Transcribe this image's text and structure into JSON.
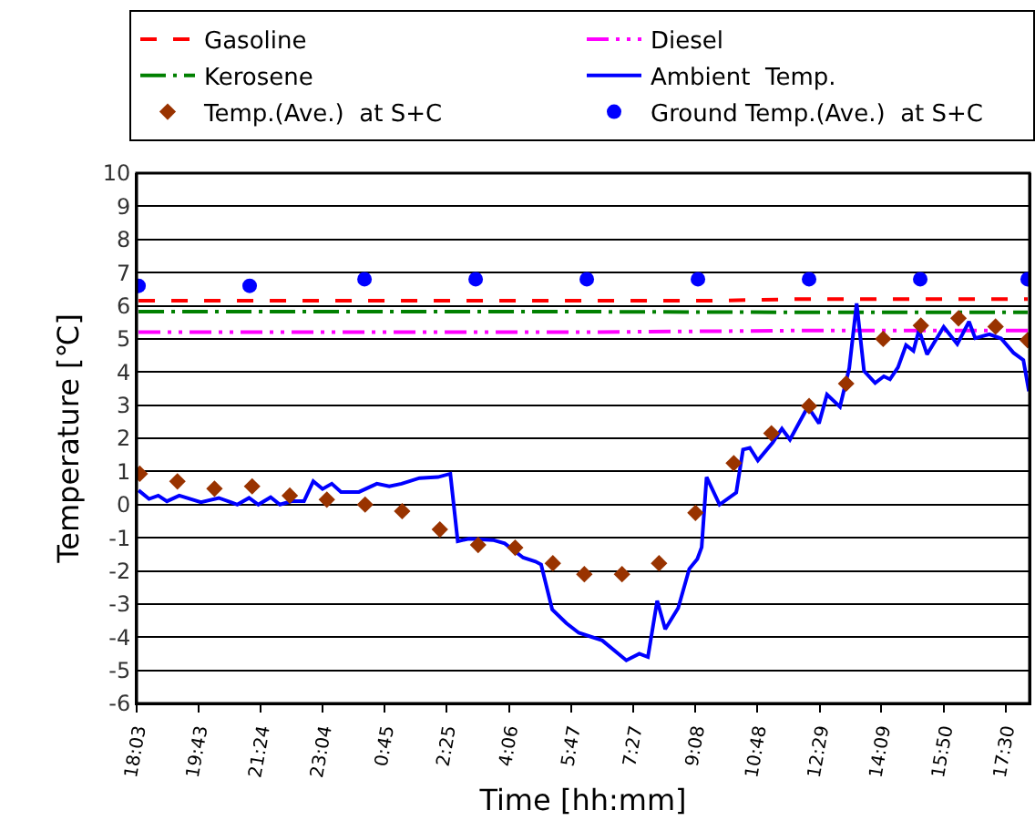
{
  "chart_data": {
    "type": "line",
    "xlabel": "Time [hh:mm]",
    "ylabel": "Temperature [℃]",
    "xlim": [
      "--01-01T18:03",
      "--01-02T18:09"
    ],
    "ylim": [
      -6,
      10
    ],
    "xticks": [
      {
        "value": "--01-01T18:03",
        "label": "18:03"
      },
      {
        "value": "--01-01T19:43",
        "label": "19:43"
      },
      {
        "value": "--01-01T21:24",
        "label": "21:24"
      },
      {
        "value": "--01-01T23:04",
        "label": "23:04"
      },
      {
        "value": "--01-02T00:45",
        "label": "0:45"
      },
      {
        "value": "--01-02T02:25",
        "label": "2:25"
      },
      {
        "value": "--01-02T04:06",
        "label": "4:06"
      },
      {
        "value": "--01-02T05:47",
        "label": "5:47"
      },
      {
        "value": "--01-02T07:27",
        "label": "7:27"
      },
      {
        "value": "--01-02T09:08",
        "label": "9:08"
      },
      {
        "value": "--01-02T10:48",
        "label": "10:48"
      },
      {
        "value": "--01-02T12:29",
        "label": "12:29"
      },
      {
        "value": "--01-02T14:09",
        "label": "14:09"
      },
      {
        "value": "--01-02T15:50",
        "label": "15:50"
      },
      {
        "value": "--01-02T17:30",
        "label": "17:30"
      }
    ],
    "yticks": [
      -6,
      -5,
      -4,
      -3,
      -2,
      -1,
      0,
      1,
      2,
      3,
      4,
      5,
      6,
      7,
      8,
      9,
      10
    ],
    "grid": "y",
    "legend": "top",
    "series": [
      {
        "name": "Gasoline",
        "color": "#ff0000",
        "line_style": "dashed",
        "marker": "none",
        "x": [
          "--01-01T18:06",
          "--01-02T00:00",
          "--01-02T06:00",
          "--01-02T09:30",
          "--01-02T12:00",
          "--01-02T18:06"
        ],
        "values": [
          6.15,
          6.15,
          6.15,
          6.15,
          6.2,
          6.2
        ]
      },
      {
        "name": "Diesel",
        "color": "#ff00ff",
        "line_style": "dashdotdot",
        "marker": "none",
        "x": [
          "--01-01T18:06",
          "--01-02T00:00",
          "--01-02T06:00",
          "--01-02T12:00",
          "--01-02T18:06"
        ],
        "values": [
          5.2,
          5.2,
          5.2,
          5.25,
          5.25
        ]
      },
      {
        "name": "Kerosene",
        "color": "#008000",
        "line_style": "dashdot",
        "marker": "none",
        "x": [
          "--01-01T18:06",
          "--01-02T00:00",
          "--01-02T06:00",
          "--01-02T12:00",
          "--01-02T18:06"
        ],
        "values": [
          5.82,
          5.82,
          5.82,
          5.8,
          5.8
        ]
      },
      {
        "name": "Ambient  Temp.",
        "color": "#0000ff",
        "line_style": "solid",
        "marker": "none",
        "x": [
          "--01-01T18:06",
          "--01-01T18:23",
          "--01-01T18:38",
          "--01-01T18:52",
          "--01-01T19:12",
          "--01-01T19:47",
          "--01-01T20:16",
          "--01-01T20:46",
          "--01-01T21:05",
          "--01-01T21:20",
          "--01-01T21:40",
          "--01-01T21:55",
          "--01-01T22:14",
          "--01-01T22:34",
          "--01-01T22:49",
          "--01-01T23:04",
          "--01-01T23:19",
          "--01-01T23:34",
          "--01-02T00:03",
          "--01-02T00:32",
          "--01-02T00:52",
          "--01-02T01:12",
          "--01-02T01:41",
          "--01-02T02:11",
          "--01-02T02:31",
          "--01-02T02:43",
          "--01-02T03:01",
          "--01-02T03:40",
          "--01-02T03:59",
          "--01-02T04:29",
          "--01-02T04:49",
          "--01-02T04:58",
          "--01-02T05:16",
          "--01-02T05:39",
          "--01-02T05:59",
          "--01-02T06:37",
          "--01-02T07:16",
          "--01-02T07:37",
          "--01-02T07:51",
          "--01-02T08:06",
          "--01-02T08:19",
          "--01-02T08:40",
          "--01-02T08:58",
          "--01-02T09:11",
          "--01-02T09:18",
          "--01-02T09:26",
          "--01-02T09:47",
          "--01-02T10:14",
          "--01-02T10:25",
          "--01-02T10:36",
          "--01-02T10:49",
          "--01-02T11:13",
          "--01-02T11:28",
          "--01-02T11:41",
          "--01-02T11:53",
          "--01-02T12:10",
          "--01-02T12:28",
          "--01-02T12:41",
          "--01-02T13:02",
          "--01-02T13:17",
          "--01-02T13:29",
          "--01-02T13:41",
          "--01-02T13:59",
          "--01-02T14:13",
          "--01-02T14:23",
          "--01-02T14:36",
          "--01-02T14:49",
          "--01-02T15:01",
          "--01-02T15:10",
          "--01-02T15:23",
          "--01-02T15:50",
          "--01-02T16:12",
          "--01-02T16:31",
          "--01-02T16:41",
          "--01-02T17:04",
          "--01-02T17:23",
          "--01-02T17:43",
          "--01-02T17:59",
          "--01-02T18:08"
        ],
        "values": [
          0.43,
          0.17,
          0.27,
          0.1,
          0.27,
          0.07,
          0.2,
          0.0,
          0.2,
          0.0,
          0.22,
          0.0,
          0.1,
          0.1,
          0.7,
          0.47,
          0.63,
          0.38,
          0.38,
          0.63,
          0.55,
          0.63,
          0.8,
          0.83,
          0.93,
          -1.11,
          -1.03,
          -1.07,
          -1.17,
          -1.6,
          -1.72,
          -1.81,
          -3.17,
          -3.58,
          -3.87,
          -4.1,
          -4.7,
          -4.5,
          -4.6,
          -2.9,
          -3.76,
          -3.12,
          -1.94,
          -1.64,
          -1.29,
          0.83,
          0.0,
          0.36,
          1.66,
          1.71,
          1.33,
          1.87,
          2.29,
          1.96,
          2.37,
          2.95,
          2.45,
          3.32,
          2.95,
          4.11,
          6.07,
          4.03,
          3.67,
          3.87,
          3.78,
          4.14,
          4.81,
          4.64,
          5.27,
          4.53,
          5.36,
          4.84,
          5.52,
          5.02,
          5.14,
          5.01,
          4.58,
          4.36,
          3.42
        ]
      },
      {
        "name": "Temp.(Ave.)  at S+C",
        "color": "#993300",
        "type": "scatter",
        "marker": "diamond",
        "x": [
          "--01-01T18:08",
          "--01-01T19:09",
          "--01-01T20:09",
          "--01-01T21:10",
          "--01-01T22:11",
          "--01-01T23:11",
          "--01-02T00:13",
          "--01-02T01:13",
          "--01-02T02:14",
          "--01-02T03:16",
          "--01-02T04:16",
          "--01-02T05:17",
          "--01-02T06:08",
          "--01-02T07:09",
          "--01-02T08:09",
          "--01-02T09:08",
          "--01-02T10:10",
          "--01-02T11:11",
          "--01-02T12:12",
          "--01-02T13:12",
          "--01-02T14:12",
          "--01-02T15:13",
          "--01-02T16:14",
          "--01-02T17:14",
          "--01-02T18:06"
        ],
        "values": [
          0.93,
          0.7,
          0.48,
          0.55,
          0.27,
          0.15,
          0.0,
          -0.2,
          -0.75,
          -1.22,
          -1.3,
          -1.77,
          -2.1,
          -2.1,
          -1.77,
          -0.25,
          1.25,
          2.15,
          2.97,
          3.65,
          5.0,
          5.4,
          5.62,
          5.37,
          4.96
        ]
      },
      {
        "name": "Ground Temp.(Ave.)  at S+C",
        "color": "#0000ff",
        "type": "scatter",
        "marker": "circle",
        "x": [
          "--01-01T18:06",
          "--01-01T21:06",
          "--01-02T00:12",
          "--01-02T03:12",
          "--01-02T06:12",
          "--01-02T09:12",
          "--01-02T12:12",
          "--01-02T15:12",
          "--01-02T18:06"
        ],
        "values": [
          6.6,
          6.6,
          6.8,
          6.8,
          6.8,
          6.8,
          6.8,
          6.8,
          6.8
        ]
      }
    ]
  }
}
